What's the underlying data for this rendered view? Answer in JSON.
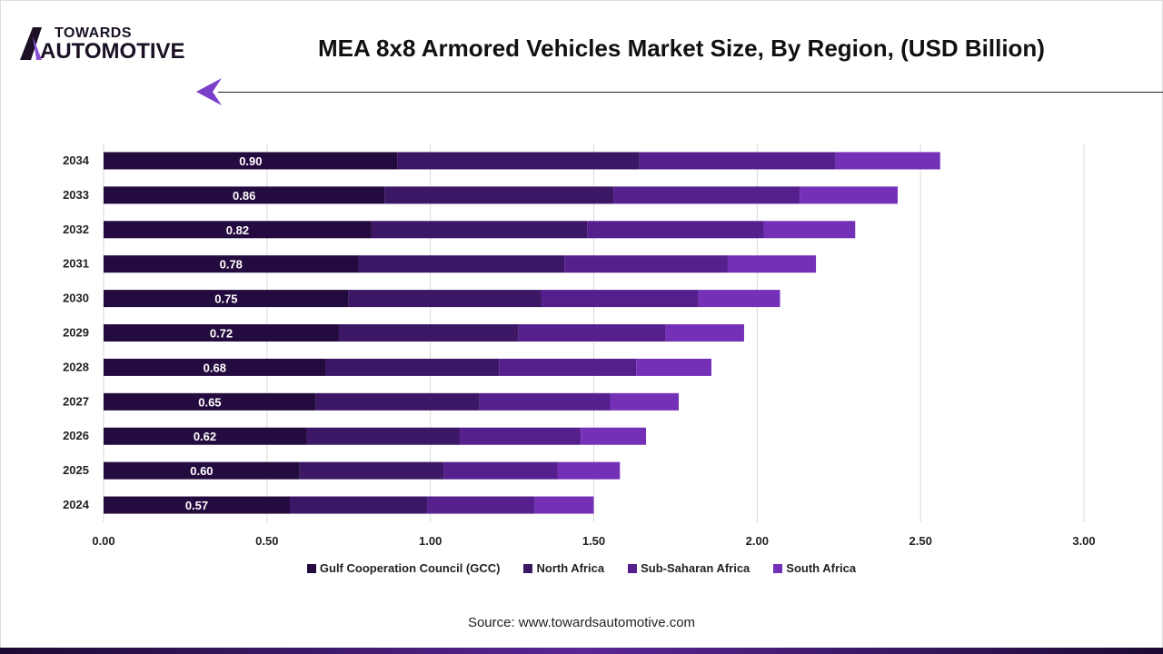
{
  "logo": {
    "line1": "TOWARDS",
    "line2": "AUTOMOTIVE"
  },
  "source": "Source: www.towardsautomotive.com",
  "chart_data": {
    "type": "bar",
    "orientation": "horizontal",
    "stacked": true,
    "title": "MEA 8x8 Armored Vehicles Market Size, By Region, (USD Billion)",
    "xlabel": "",
    "ylabel": "",
    "xlim": [
      0,
      3
    ],
    "xticks": [
      "0.00",
      "0.50",
      "1.00",
      "1.50",
      "2.00",
      "2.50",
      "3.00"
    ],
    "grid": true,
    "legend_position": "bottom",
    "categories": [
      "2034",
      "2033",
      "2032",
      "2031",
      "2030",
      "2029",
      "2028",
      "2027",
      "2026",
      "2025",
      "2024"
    ],
    "series": [
      {
        "name": "Gulf Cooperation Council (GCC)",
        "color": "#240b3f",
        "values": [
          0.9,
          0.86,
          0.82,
          0.78,
          0.75,
          0.72,
          0.68,
          0.65,
          0.62,
          0.6,
          0.57
        ],
        "labels": [
          "0.90",
          "0.86",
          "0.82",
          "0.78",
          "0.75",
          "0.72",
          "0.68",
          "0.65",
          "0.62",
          "0.60",
          "0.57"
        ]
      },
      {
        "name": "North Africa",
        "color": "#3b1766",
        "values": [
          0.74,
          0.7,
          0.66,
          0.63,
          0.59,
          0.55,
          0.53,
          0.5,
          0.47,
          0.44,
          0.42
        ]
      },
      {
        "name": "Sub-Saharan Africa",
        "color": "#55208e",
        "values": [
          0.6,
          0.57,
          0.54,
          0.5,
          0.48,
          0.45,
          0.42,
          0.4,
          0.37,
          0.35,
          0.33
        ]
      },
      {
        "name": "South Africa",
        "color": "#7530b8",
        "values": [
          0.32,
          0.3,
          0.28,
          0.27,
          0.25,
          0.24,
          0.23,
          0.21,
          0.2,
          0.19,
          0.18
        ]
      }
    ]
  }
}
